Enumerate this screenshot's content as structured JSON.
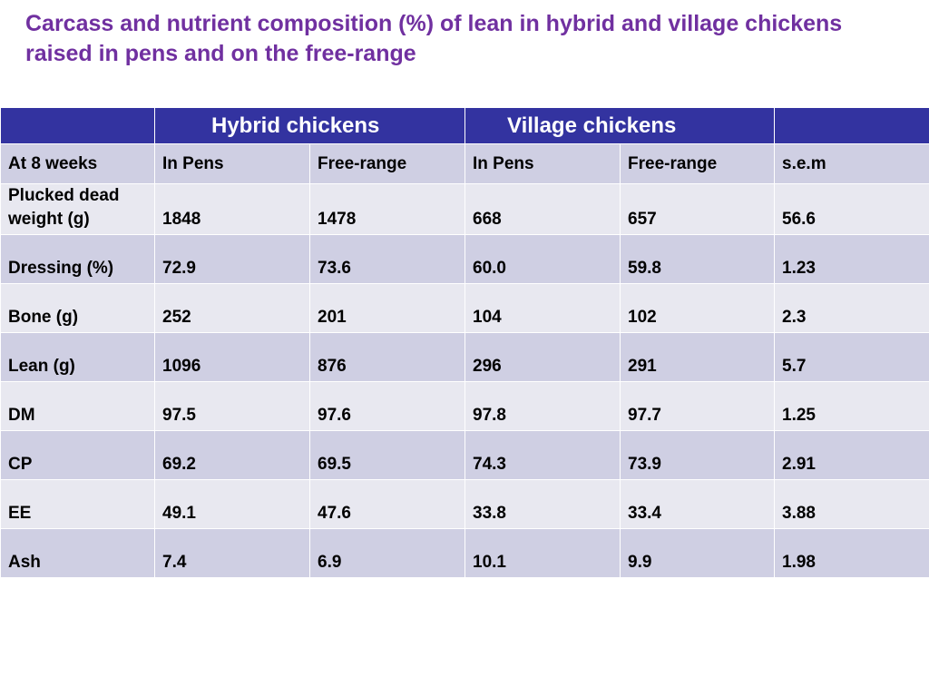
{
  "slide": {
    "title": "Carcass and nutrient composition (%) of lean in hybrid and village chickens raised in pens and on the free-range"
  },
  "table": {
    "group_headers": {
      "corner": "",
      "hybrid": "Hybrid chickens",
      "village": "Village chickens",
      "last": ""
    },
    "sub_headers": [
      "At 8 weeks",
      "In Pens",
      "Free-range",
      "In Pens",
      "Free-range",
      "s.e.m"
    ],
    "rows": [
      {
        "label": "Plucked dead weight (g)",
        "values": [
          "1848",
          "1478",
          "668",
          "657",
          "56.6"
        ]
      },
      {
        "label": "Dressing (%)",
        "values": [
          "72.9",
          "73.6",
          "60.0",
          "59.8",
          "1.23"
        ]
      },
      {
        "label": "Bone (g)",
        "values": [
          "252",
          "201",
          "104",
          "102",
          "2.3"
        ]
      },
      {
        "label": "Lean (g)",
        "values": [
          "1096",
          "876",
          "296",
          "291",
          "5.7"
        ]
      },
      {
        "label": "DM",
        "values": [
          "97.5",
          "97.6",
          "97.8",
          "97.7",
          "1.25"
        ]
      },
      {
        "label": "CP",
        "values": [
          "69.2",
          "69.5",
          "74.3",
          "73.9",
          "2.91"
        ]
      },
      {
        "label": "EE",
        "values": [
          "49.1",
          "47.6",
          "33.8",
          "33.4",
          "3.88"
        ]
      },
      {
        "label": "Ash",
        "values": [
          "7.4",
          "6.9",
          "10.1",
          "9.9",
          "1.98"
        ]
      }
    ]
  },
  "colors": {
    "title": "#7030a0",
    "header_fill": "#3333a0",
    "row_light": "#e8e8f0",
    "row_dark": "#cfcfe3"
  }
}
